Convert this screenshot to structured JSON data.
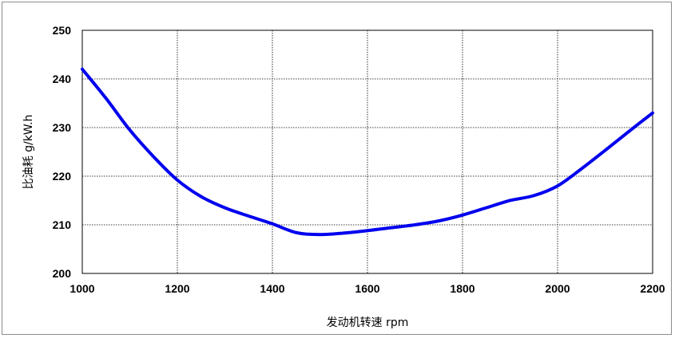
{
  "chart_data": {
    "type": "line",
    "title": "",
    "xlabel": "发动机转速  rpm",
    "ylabel": "比油耗  g/kW.h",
    "xlim": [
      1000,
      2200
    ],
    "ylim": [
      200,
      250
    ],
    "x_ticks": [
      1000,
      1200,
      1400,
      1600,
      1800,
      2000,
      2200
    ],
    "y_ticks": [
      200,
      210,
      220,
      230,
      240,
      250
    ],
    "x_tick_labels": [
      "1000",
      "1200",
      "1400",
      "1600",
      "1800",
      "2000",
      "2200"
    ],
    "y_tick_labels": [
      "200",
      "210",
      "220",
      "230",
      "240",
      "250"
    ],
    "grid": true,
    "legend": "none",
    "series": [
      {
        "color": "#0000ee",
        "x": [
          1000,
          1050,
          1100,
          1150,
          1200,
          1250,
          1300,
          1350,
          1400,
          1450,
          1500,
          1550,
          1600,
          1650,
          1700,
          1750,
          1800,
          1850,
          1900,
          1950,
          2000,
          2050,
          2100,
          2150,
          2200
        ],
        "y": [
          242,
          236,
          229.5,
          224,
          219.2,
          215.8,
          213.5,
          211.8,
          210.2,
          208.4,
          208,
          208.3,
          208.8,
          209.4,
          210,
          210.8,
          212,
          213.5,
          215,
          216,
          218,
          221.5,
          225.3,
          229.2,
          233
        ]
      }
    ]
  }
}
